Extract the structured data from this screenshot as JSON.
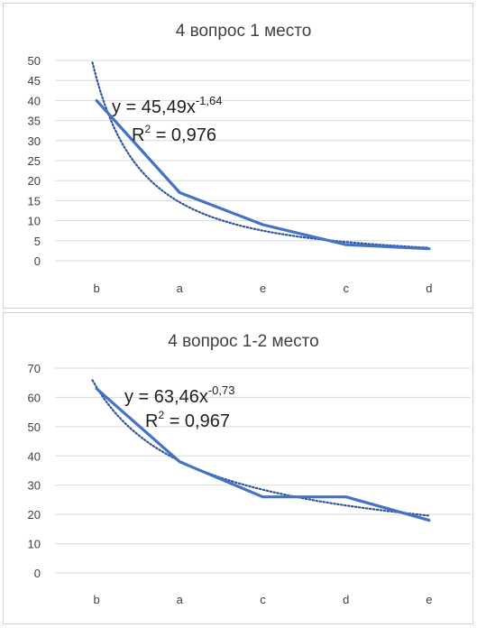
{
  "chart_data": [
    {
      "type": "line",
      "title": "4 вопрос 1 место",
      "categories": [
        "b",
        "a",
        "e",
        "c",
        "d"
      ],
      "series": [
        {
          "values": [
            40,
            17,
            9,
            4,
            3
          ],
          "color": "#4472c4"
        }
      ],
      "trendline": {
        "type": "power",
        "coefficient": 45.49,
        "exponent": -1.64,
        "equation_label": "y = 45,49x",
        "exponent_label": "-1,64",
        "r2_prefix": "R",
        "r2_sup": "2",
        "r2_value": " = 0,976",
        "style": "dotted",
        "color": "#2f5597"
      },
      "ylim": [
        0,
        50
      ],
      "yticks": [
        "0",
        "5",
        "10",
        "15",
        "20",
        "25",
        "30",
        "35",
        "40",
        "45",
        "50"
      ],
      "grid": true,
      "xlabel": "",
      "ylabel": ""
    },
    {
      "type": "line",
      "title": "4 вопрос 1-2 место",
      "categories": [
        "b",
        "a",
        "c",
        "d",
        "e"
      ],
      "series": [
        {
          "values": [
            63,
            38,
            26,
            26,
            18
          ],
          "color": "#4472c4"
        }
      ],
      "trendline": {
        "type": "power",
        "coefficient": 63.46,
        "exponent": -0.73,
        "equation_label": "y = 63,46x",
        "exponent_label": "-0,73",
        "r2_prefix": "R",
        "r2_sup": "2",
        "r2_value": " = 0,967",
        "style": "dotted",
        "color": "#2f5597"
      },
      "ylim": [
        0,
        70
      ],
      "yticks": [
        "0",
        "10",
        "20",
        "30",
        "40",
        "50",
        "60",
        "70"
      ],
      "grid": true,
      "xlabel": "",
      "ylabel": ""
    }
  ]
}
